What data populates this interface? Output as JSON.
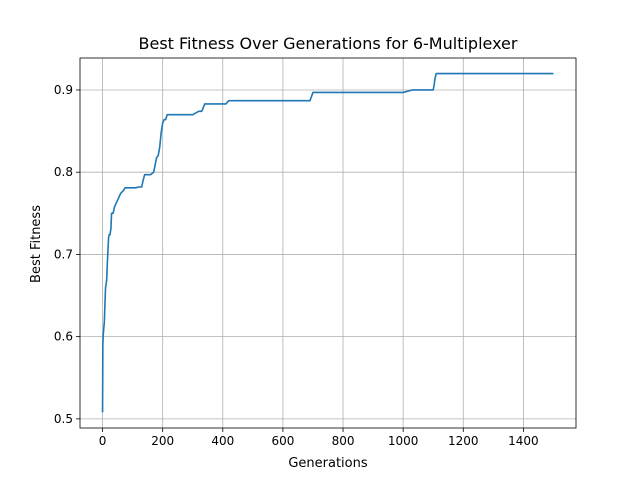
{
  "chart_data": {
    "type": "line",
    "title": "Best Fitness Over Generations for 6-Multiplexer",
    "xlabel": "Generations",
    "ylabel": "Best Fitness",
    "xlim": [
      -75,
      1575
    ],
    "ylim": [
      0.4889,
      0.9389
    ],
    "xticks": [
      0,
      200,
      400,
      600,
      800,
      1000,
      1200,
      1400
    ],
    "yticks": [
      0.5,
      0.6,
      0.7,
      0.8,
      0.9
    ],
    "ytick_labels": [
      "0.5",
      "0.6",
      "0.7",
      "0.8",
      "0.9"
    ],
    "grid": true,
    "color": "#1f77b4",
    "series": [
      {
        "x": [
          0,
          1,
          2,
          3,
          4,
          5,
          6,
          8,
          10,
          12,
          14,
          16,
          18,
          20,
          22,
          25,
          28,
          30,
          33,
          35,
          40,
          45,
          50,
          55,
          60,
          65,
          70,
          75,
          80,
          90,
          100,
          110,
          120,
          130,
          135,
          140,
          150,
          160,
          170,
          180,
          185,
          188,
          190,
          195,
          200,
          205,
          210,
          215,
          220,
          250,
          300,
          320,
          330,
          340,
          400,
          410,
          420,
          500,
          600,
          690,
          700,
          705,
          800,
          900,
          1000,
          1030,
          1040,
          1100,
          1103,
          1106,
          1110,
          1200,
          1300,
          1400,
          1500
        ],
        "y": [
          0.508,
          0.59,
          0.6,
          0.605,
          0.61,
          0.614,
          0.618,
          0.64,
          0.66,
          0.664,
          0.67,
          0.69,
          0.705,
          0.72,
          0.724,
          0.724,
          0.732,
          0.75,
          0.75,
          0.75,
          0.758,
          0.762,
          0.766,
          0.77,
          0.774,
          0.776,
          0.778,
          0.781,
          0.781,
          0.781,
          0.781,
          0.781,
          0.782,
          0.782,
          0.79,
          0.797,
          0.797,
          0.797,
          0.8,
          0.818,
          0.82,
          0.826,
          0.83,
          0.848,
          0.86,
          0.864,
          0.864,
          0.87,
          0.87,
          0.87,
          0.87,
          0.874,
          0.874,
          0.883,
          0.883,
          0.883,
          0.887,
          0.887,
          0.887,
          0.887,
          0.897,
          0.897,
          0.897,
          0.897,
          0.897,
          0.9,
          0.9,
          0.9,
          0.906,
          0.914,
          0.92,
          0.92,
          0.92,
          0.92,
          0.92
        ]
      }
    ]
  }
}
